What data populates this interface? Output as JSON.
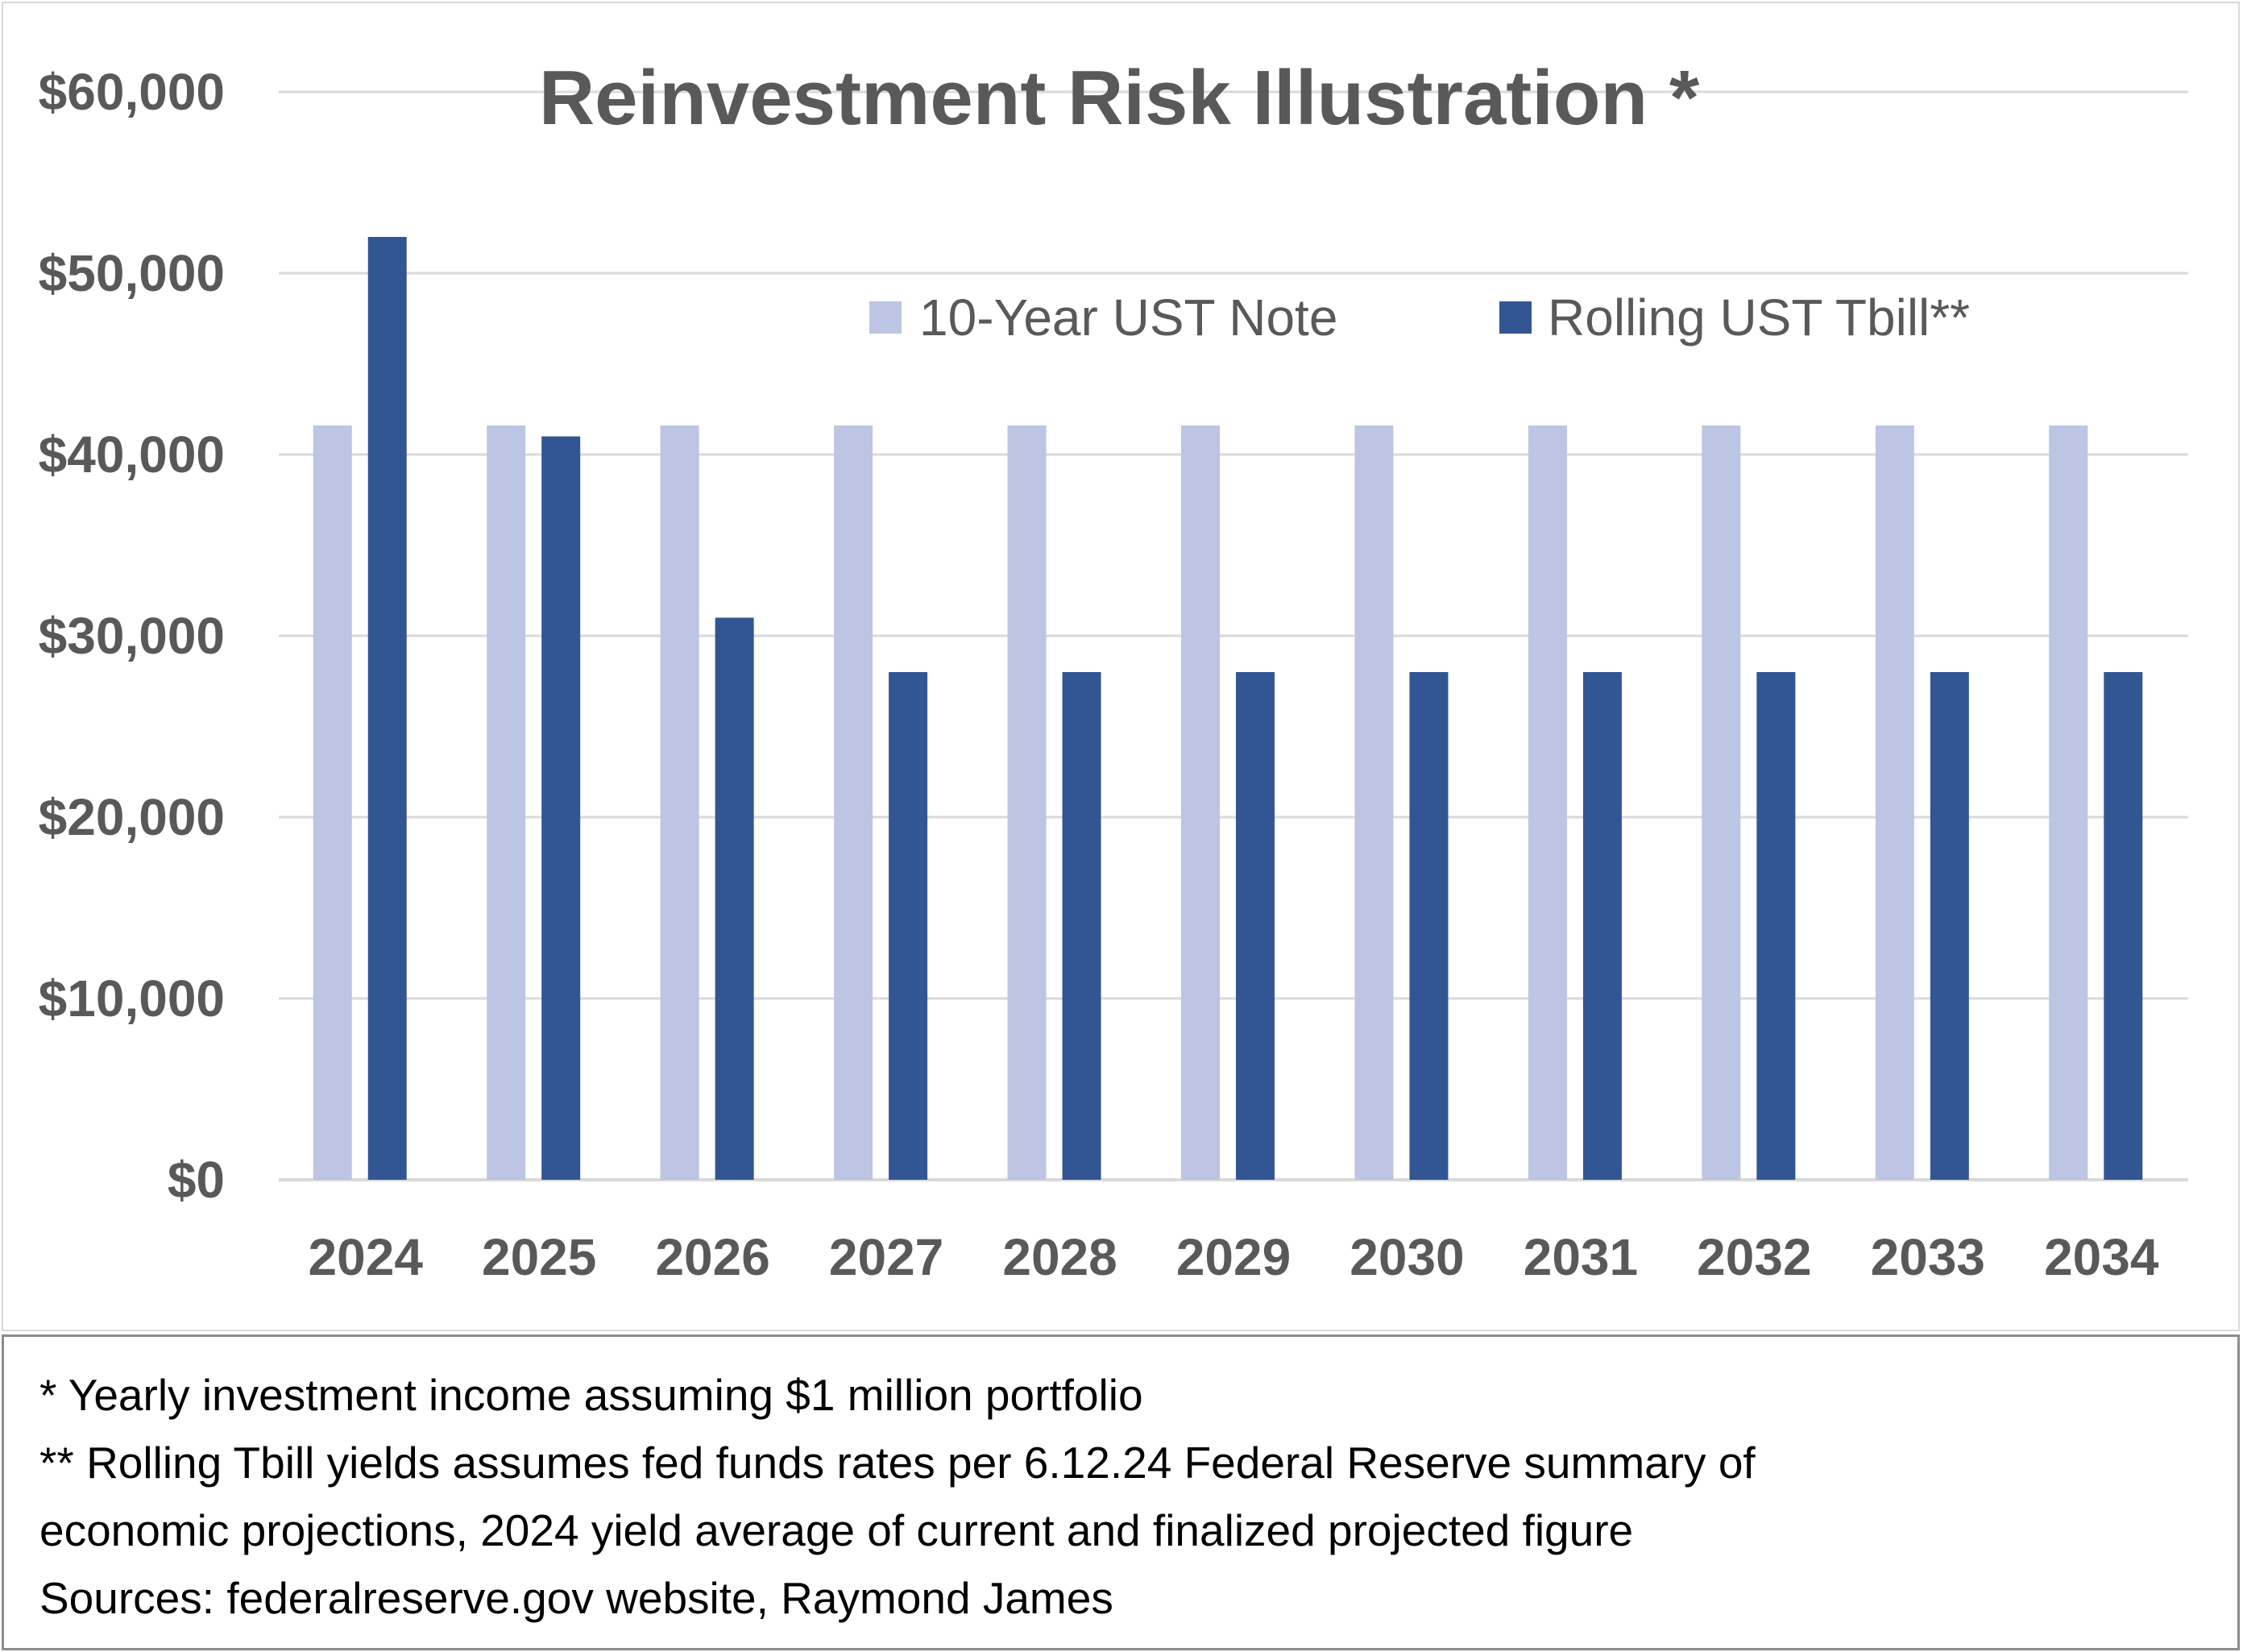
{
  "colors": {
    "ten_year": "#bcc5e3",
    "tbill": "#325694",
    "grid": "#d9d9d9",
    "text": "#595959"
  },
  "chart_data": {
    "type": "bar",
    "title": "Reinvestment Risk Illustration *",
    "categories": [
      "2024",
      "2025",
      "2026",
      "2027",
      "2028",
      "2029",
      "2030",
      "2031",
      "2032",
      "2033",
      "2034"
    ],
    "series": [
      {
        "name": "10-Year UST Note",
        "values": [
          41600,
          41600,
          41600,
          41600,
          41600,
          41600,
          41600,
          41600,
          41600,
          41600,
          41600
        ]
      },
      {
        "name": "Rolling UST Tbill**",
        "values": [
          52000,
          41000,
          31000,
          28000,
          28000,
          28000,
          28000,
          28000,
          28000,
          28000,
          28000
        ]
      }
    ],
    "ylim": [
      0,
      60000
    ],
    "yticks": [
      "$0",
      "$10,000",
      "$20,000",
      "$30,000",
      "$40,000",
      "$50,000",
      "$60,000"
    ],
    "grid": true,
    "legend_position": "top-right"
  },
  "notes": [
    "* Yearly investment income assuming $1 million portfolio",
    "** Rolling Tbill yields assumes fed funds rates per 6.12.24 Federal Reserve summary of",
    "economic projections, 2024 yield average of current and finalized projected figure",
    "Sources: federalreserve.gov website, Raymond James"
  ]
}
